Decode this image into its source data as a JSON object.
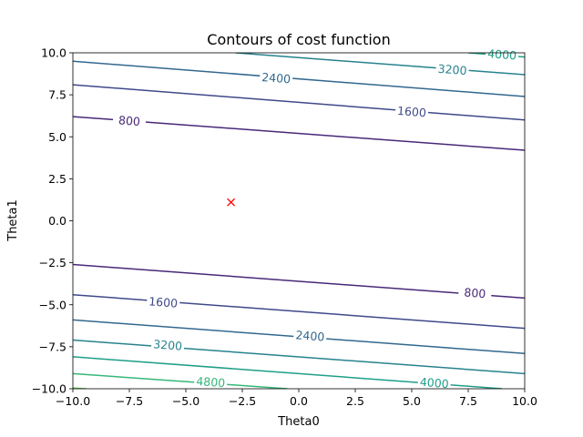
{
  "chart_data": {
    "type": "contour",
    "title": "Contours of cost function",
    "xlabel": "Theta0",
    "ylabel": "Theta1",
    "xlim": [
      -10,
      10
    ],
    "ylim": [
      -10,
      10
    ],
    "xticks": [
      -10,
      -7.5,
      -5,
      -2.5,
      0,
      2.5,
      5,
      7.5,
      10
    ],
    "yticks": [
      -10,
      -7.5,
      -5,
      -2.5,
      0,
      2.5,
      5,
      7.5,
      10
    ],
    "xtick_labels": [
      "−10.0",
      "−7.5",
      "−5.0",
      "−2.5",
      "0.0",
      "2.5",
      "5.0",
      "7.5",
      "10.0"
    ],
    "ytick_labels": [
      "−10.0",
      "−7.5",
      "−5.0",
      "−2.5",
      "0.0",
      "2.5",
      "5.0",
      "7.5",
      "10.0"
    ],
    "grid": false,
    "levels": [
      800,
      1600,
      2400,
      3200,
      4000,
      4800
    ],
    "contour_lines": [
      {
        "level": 800,
        "color": "#482878",
        "points": [
          [
            -10,
            6.2
          ],
          [
            10,
            4.2
          ]
        ]
      },
      {
        "level": 800,
        "color": "#482878",
        "points": [
          [
            -10,
            -2.6
          ],
          [
            10,
            -4.6
          ]
        ]
      },
      {
        "level": 1600,
        "color": "#3e4989",
        "points": [
          [
            -10,
            8.1
          ],
          [
            10,
            6.0
          ]
        ]
      },
      {
        "level": 1600,
        "color": "#3e4989",
        "points": [
          [
            -10,
            -4.4
          ],
          [
            10,
            -6.4
          ]
        ]
      },
      {
        "level": 2400,
        "color": "#31688e",
        "points": [
          [
            -10,
            9.5
          ],
          [
            10,
            7.4
          ]
        ]
      },
      {
        "level": 2400,
        "color": "#31688e",
        "points": [
          [
            -10,
            -5.9
          ],
          [
            10,
            -7.9
          ]
        ]
      },
      {
        "level": 3200,
        "color": "#26828e",
        "points": [
          [
            -2.8,
            10.0
          ],
          [
            10,
            8.7
          ]
        ]
      },
      {
        "level": 3200,
        "color": "#26828e",
        "points": [
          [
            -10,
            -7.1
          ],
          [
            10,
            -9.1
          ]
        ]
      },
      {
        "level": 4000,
        "color": "#1f9e89",
        "points": [
          [
            7.5,
            10.0
          ],
          [
            10,
            9.75
          ]
        ]
      },
      {
        "level": 4000,
        "color": "#1f9e89",
        "points": [
          [
            -10,
            -8.1
          ],
          [
            9.0,
            -10.0
          ]
        ]
      },
      {
        "level": 4800,
        "color": "#35b779",
        "points": [
          [
            -10,
            -9.1
          ],
          [
            -0.5,
            -10.0
          ]
        ]
      },
      {
        "level": 5600,
        "color": "#6ece58",
        "points": [
          [
            -10,
            -9.95
          ],
          [
            -9.4,
            -10.0
          ]
        ]
      }
    ],
    "contour_labels": [
      {
        "text": "800",
        "x": -7.5,
        "y": 5.95,
        "color": "#482878"
      },
      {
        "text": "800",
        "x": 7.8,
        "y": -4.3,
        "color": "#482878"
      },
      {
        "text": "1600",
        "x": 5.0,
        "y": 6.5,
        "color": "#3e4989"
      },
      {
        "text": "1600",
        "x": -6.0,
        "y": -4.85,
        "color": "#3e4989"
      },
      {
        "text": "2400",
        "x": -1.0,
        "y": 8.5,
        "color": "#31688e"
      },
      {
        "text": "2400",
        "x": 0.5,
        "y": -6.85,
        "color": "#31688e"
      },
      {
        "text": "3200",
        "x": 6.8,
        "y": 9.0,
        "color": "#26828e"
      },
      {
        "text": "3200",
        "x": -5.8,
        "y": -7.4,
        "color": "#26828e"
      },
      {
        "text": "4000",
        "x": 9.0,
        "y": 9.9,
        "color": "#1f9e89"
      },
      {
        "text": "4000",
        "x": 6.0,
        "y": -9.65,
        "color": "#1f9e89"
      },
      {
        "text": "4800",
        "x": -3.9,
        "y": -9.6,
        "color": "#35b779"
      }
    ],
    "minimum_marker": {
      "x": -3.0,
      "y": 1.1,
      "marker": "x",
      "color": "#ff0000"
    }
  }
}
